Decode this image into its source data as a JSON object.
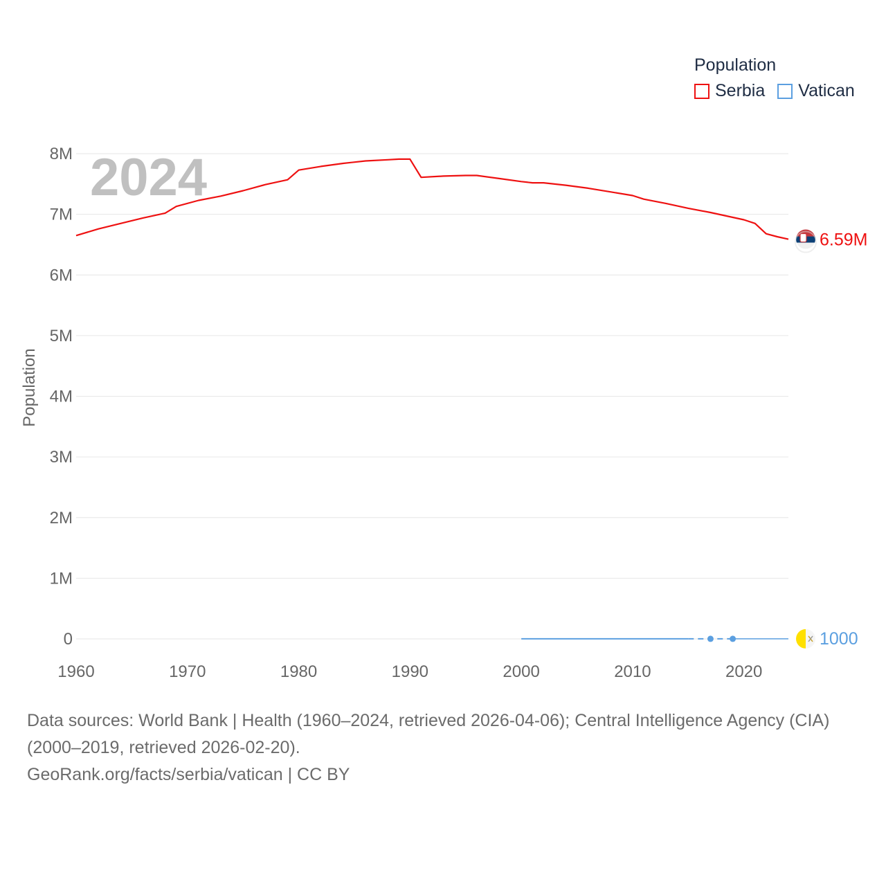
{
  "legend": {
    "title": "Population",
    "items": [
      {
        "label": "Serbia",
        "color": "#ee1111"
      },
      {
        "label": "Vatican",
        "color": "#5b9fe0"
      }
    ]
  },
  "year_overlay": "2024",
  "chart_data": {
    "type": "line",
    "title": "",
    "xlabel": "",
    "ylabel": "Population",
    "xlim": [
      1960,
      2024
    ],
    "ylim": [
      0,
      8000000
    ],
    "x_ticks": [
      "1960",
      "1970",
      "1980",
      "1990",
      "2000",
      "2010",
      "2020"
    ],
    "y_ticks": [
      "0",
      "1M",
      "2M",
      "3M",
      "4M",
      "5M",
      "6M",
      "7M",
      "8M"
    ],
    "series": [
      {
        "name": "Serbia",
        "color": "#ee1111",
        "end_label": "6.59M",
        "x": [
          1960,
          1962,
          1964,
          1966,
          1968,
          1969,
          1971,
          1973,
          1975,
          1977,
          1979,
          1980,
          1982,
          1984,
          1986,
          1988,
          1989,
          1990,
          1991,
          1993,
          1995,
          1996,
          1998,
          2000,
          2001,
          2002,
          2004,
          2006,
          2008,
          2010,
          2011,
          2013,
          2015,
          2017,
          2019,
          2020,
          2021,
          2022,
          2023,
          2024
        ],
        "values": [
          6650000,
          6760000,
          6850000,
          6940000,
          7020000,
          7130000,
          7230000,
          7300000,
          7390000,
          7490000,
          7570000,
          7730000,
          7790000,
          7840000,
          7880000,
          7900000,
          7910000,
          7910000,
          7610000,
          7630000,
          7640000,
          7640000,
          7590000,
          7540000,
          7520000,
          7520000,
          7480000,
          7430000,
          7370000,
          7310000,
          7250000,
          7180000,
          7100000,
          7030000,
          6950000,
          6910000,
          6850000,
          6680000,
          6630000,
          6590000
        ]
      },
      {
        "name": "Vatican",
        "color": "#5b9fe0",
        "end_label": "1000",
        "x": [
          2000,
          2015,
          2017,
          2019,
          2024
        ],
        "values": [
          1000,
          1000,
          1000,
          1000,
          1000
        ],
        "dashed_range": [
          2015,
          2019
        ],
        "markers": [
          2017,
          2019
        ]
      }
    ]
  },
  "footer": {
    "sources": "Data sources: World Bank | Health (1960–2024, retrieved 2026-04-06); Central Intelligence Agency (CIA) (2000–2019, retrieved 2026-02-20).",
    "attribution": "GeoRank.org/facts/serbia/vatican | CC BY"
  }
}
